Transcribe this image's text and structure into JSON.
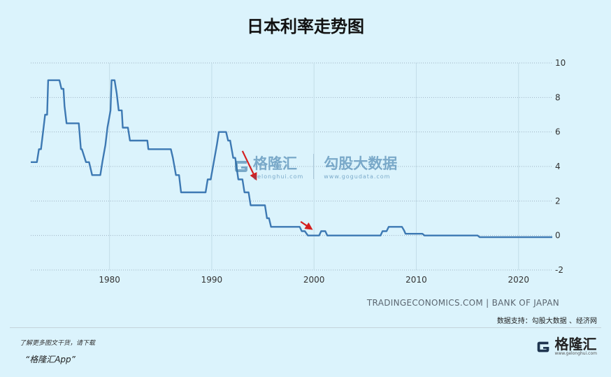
{
  "title": "日本利率走势图",
  "source": "TRADINGECONOMICS.COM | BANK OF JAPAN",
  "data_support": "数据支持：勾股大数据 、经济网",
  "footer": {
    "promo_line1": "了解更多图文干货，请下载",
    "promo_line2": "“格隆汇App”",
    "brand_name": "格隆汇",
    "brand_url": "www.gelonghui.com"
  },
  "watermark": {
    "brand1": "格隆汇",
    "brand1_url": "gelonghui.com",
    "brand2": "勾股大数据",
    "brand2_url": "www.gogudata.com"
  },
  "colors": {
    "background": "#dbf3fc",
    "line": "#3d79b3",
    "arrow": "#d42020"
  },
  "chart_data": {
    "type": "line",
    "title": "日本利率走势图",
    "xlabel": "",
    "ylabel": "",
    "xlim": [
      1972.3,
      2023.3
    ],
    "ylim": [
      -2,
      10
    ],
    "x_ticks": [
      1980,
      1990,
      2000,
      2010,
      2020
    ],
    "y_ticks": [
      10,
      8,
      6,
      4,
      2,
      0,
      -2
    ],
    "y_tick_labels": [
      "10",
      "8",
      "6",
      "4",
      "2",
      "0",
      "-2"
    ],
    "grid": true,
    "y_axis_position": "right",
    "series": [
      {
        "name": "",
        "x": [
          1972.3,
          1972.9,
          1973.1,
          1973.3,
          1973.5,
          1973.7,
          1973.9,
          1974.0,
          1975.1,
          1975.3,
          1975.5,
          1975.6,
          1975.8,
          1977.0,
          1977.2,
          1977.3,
          1977.7,
          1978.0,
          1978.3,
          1979.1,
          1979.3,
          1979.6,
          1979.8,
          1980.1,
          1980.2,
          1980.5,
          1980.7,
          1980.9,
          1981.2,
          1981.3,
          1981.8,
          1982.0,
          1983.7,
          1983.8,
          1986.0,
          1986.2,
          1986.5,
          1986.8,
          1987.0,
          1989.4,
          1989.6,
          1989.9,
          1990.2,
          1990.5,
          1990.7,
          1991.4,
          1991.6,
          1991.8,
          1992.1,
          1992.3,
          1992.6,
          1993.0,
          1993.2,
          1993.6,
          1993.8,
          1995.2,
          1995.4,
          1995.6,
          1995.8,
          1998.6,
          1998.8,
          1999.1,
          1999.4,
          2000.5,
          2000.7,
          2001.1,
          2001.3,
          2006.5,
          2006.7,
          2007.1,
          2007.3,
          2008.6,
          2008.8,
          2008.95,
          2010.6,
          2010.8,
          2016.0,
          2016.2,
          2023.3
        ],
        "y": [
          4.25,
          4.25,
          5.0,
          5.0,
          6.0,
          7.0,
          7.0,
          9.0,
          9.0,
          8.5,
          8.5,
          7.5,
          6.5,
          6.5,
          5.0,
          5.0,
          4.25,
          4.25,
          3.5,
          3.5,
          4.25,
          5.25,
          6.25,
          7.25,
          9.0,
          9.0,
          8.25,
          7.25,
          7.25,
          6.25,
          6.25,
          5.5,
          5.5,
          5.0,
          5.0,
          4.5,
          3.5,
          3.5,
          2.5,
          2.5,
          3.25,
          3.25,
          4.25,
          5.25,
          6.0,
          6.0,
          5.5,
          5.5,
          4.5,
          4.5,
          3.25,
          3.25,
          2.5,
          2.5,
          1.75,
          1.75,
          1.0,
          1.0,
          0.5,
          0.5,
          0.25,
          0.25,
          0.0,
          0.0,
          0.25,
          0.25,
          0.0,
          0.0,
          0.25,
          0.25,
          0.5,
          0.5,
          0.3,
          0.1,
          0.1,
          0.0,
          0.0,
          -0.1,
          -0.1
        ]
      }
    ],
    "annotations": [
      {
        "type": "arrow",
        "x1": 1993.0,
        "y1": 4.9,
        "x2": 1994.3,
        "y2": 3.3
      },
      {
        "type": "arrow",
        "x1": 1998.7,
        "y1": 0.8,
        "x2": 1999.7,
        "y2": 0.4
      }
    ]
  }
}
